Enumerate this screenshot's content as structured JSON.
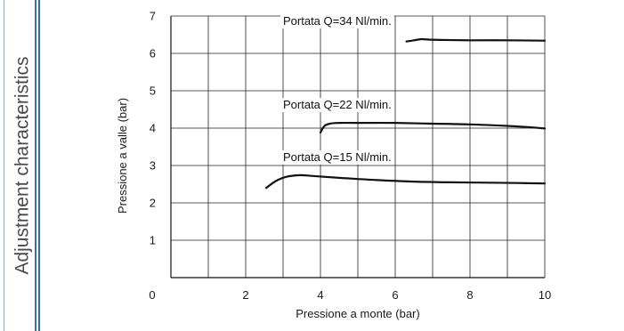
{
  "sidebar": {
    "title": "Adjustment characteristics",
    "accent_color": "#2f6db5"
  },
  "chart_data": {
    "type": "line",
    "title": "",
    "xlabel": "Pressione a monte (bar)",
    "ylabel": "Pressione a valle (bar)",
    "xlim": [
      0,
      10
    ],
    "ylim": [
      0,
      7
    ],
    "x_ticks": [
      0,
      2,
      4,
      6,
      8,
      10
    ],
    "y_ticks": [
      1,
      2,
      3,
      4,
      5,
      6,
      7
    ],
    "x_grid": [
      1,
      2,
      3,
      4,
      5,
      6,
      7,
      8,
      9,
      10
    ],
    "y_grid": [
      1,
      2,
      3,
      4,
      5,
      6,
      7
    ],
    "grid": true,
    "series": [
      {
        "name": "Portata Q=15 Nl/min.",
        "x": [
          2.55,
          2.8,
          3.1,
          3.45,
          3.8,
          4.5,
          5.5,
          6.5,
          7.5,
          8.5,
          9.3,
          10.0
        ],
        "y": [
          2.4,
          2.58,
          2.7,
          2.74,
          2.72,
          2.67,
          2.61,
          2.57,
          2.55,
          2.54,
          2.53,
          2.52
        ]
      },
      {
        "name": "Portata Q=22 Nl/min.",
        "x": [
          4.0,
          4.1,
          4.25,
          4.5,
          5.0,
          6.0,
          7.0,
          8.0,
          9.0,
          9.5,
          10.0
        ],
        "y": [
          3.88,
          4.05,
          4.12,
          4.14,
          4.14,
          4.14,
          4.12,
          4.1,
          4.06,
          4.03,
          3.99
        ]
      },
      {
        "name": "Portata Q=34 Nl/min.",
        "x": [
          6.3,
          6.5,
          6.7,
          6.9,
          7.2,
          8.0,
          9.0,
          10.0
        ],
        "y": [
          6.32,
          6.35,
          6.38,
          6.37,
          6.36,
          6.35,
          6.35,
          6.34
        ]
      }
    ]
  }
}
